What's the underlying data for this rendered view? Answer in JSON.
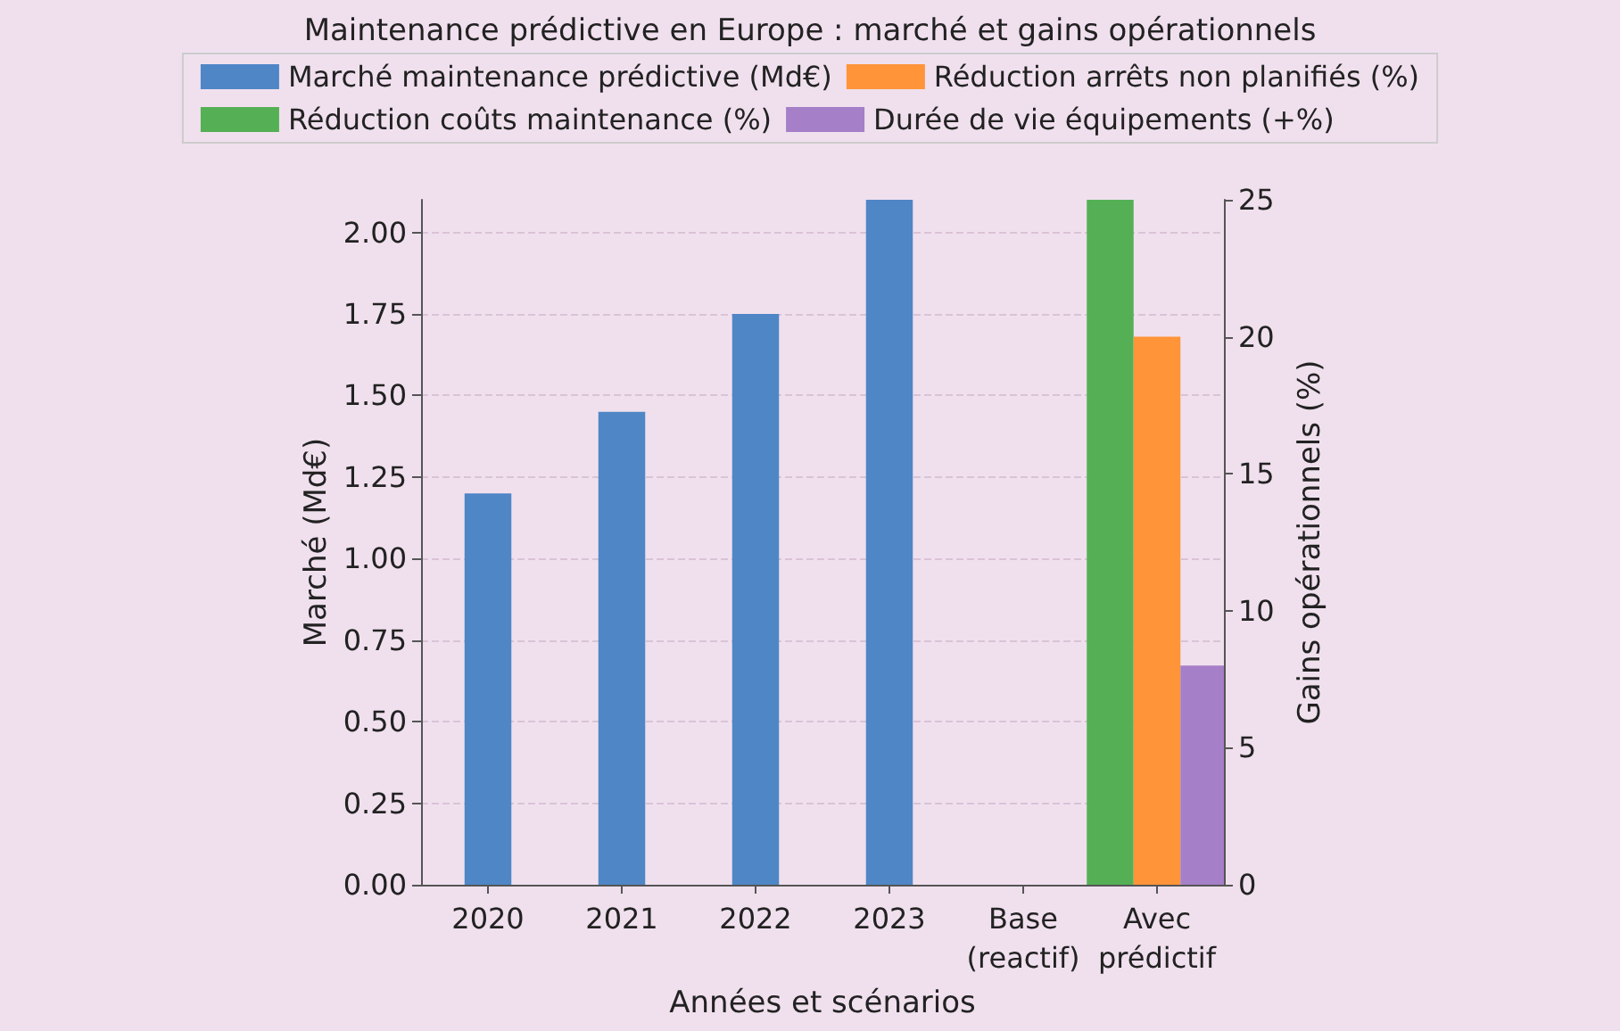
{
  "chart_data": {
    "type": "bar",
    "title": "Maintenance prédictive en Europe : marché et gains opérationnels",
    "xlabel": "Années et scénarios",
    "ylabel": "Marché (Md€)",
    "y2label": "Gains opérationnels (%)",
    "categories": [
      "2020",
      "2021",
      "2022",
      "2023",
      "Base\n(reactif)",
      "Avec\nprédictif"
    ],
    "series": [
      {
        "name": "Marché maintenance prédictive (Md€)",
        "color": "#4f86c6",
        "values": [
          1.2,
          1.45,
          1.75,
          2.1,
          null,
          null
        ]
      },
      {
        "name": "Réduction coûts maintenance (%)",
        "color": "#55b055",
        "axis": "y2",
        "values": [
          null,
          null,
          null,
          null,
          null,
          25
        ]
      },
      {
        "name": "Réduction arrêts non planifiés (%)",
        "color": "#ff9438",
        "axis": "y2",
        "values": [
          null,
          null,
          null,
          null,
          null,
          20
        ]
      },
      {
        "name": "Durée de vie équipements (+%)",
        "color": "#a57fc7",
        "axis": "y2",
        "values": [
          null,
          null,
          null,
          null,
          null,
          8
        ]
      }
    ],
    "ylim": [
      0,
      2.1
    ],
    "yticks": [
      {
        "value": 0,
        "label": "0.00"
      },
      {
        "value": 0.25,
        "label": "0.25"
      },
      {
        "value": 0.5,
        "label": "0.50"
      },
      {
        "value": 0.75,
        "label": "0.75"
      },
      {
        "value": 1,
        "label": "1.00"
      },
      {
        "value": 1.25,
        "label": "1.25"
      },
      {
        "value": 1.5,
        "label": "1.50"
      },
      {
        "value": 1.75,
        "label": "1.75"
      },
      {
        "value": 2,
        "label": "2.00"
      }
    ],
    "y2lim": [
      0,
      25
    ],
    "y2ticks": [
      0,
      5,
      10,
      15,
      20,
      25
    ],
    "grid": "y",
    "legend": "top"
  }
}
